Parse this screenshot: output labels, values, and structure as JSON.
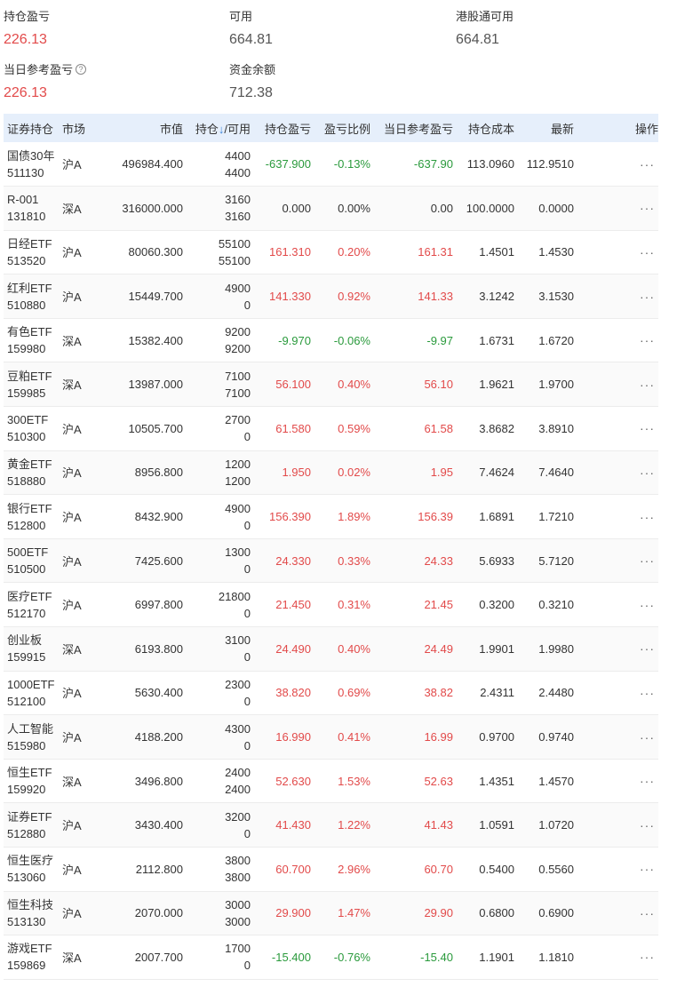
{
  "summary": {
    "position_pl": {
      "label": "持仓盈亏",
      "value": "226.13"
    },
    "available": {
      "label": "可用",
      "value": "664.81"
    },
    "hk_available": {
      "label": "港股通可用",
      "value": "664.81"
    },
    "daily_ref_pl": {
      "label": "当日参考盈亏",
      "value": "226.13"
    },
    "fund_balance": {
      "label": "资金余额",
      "value": "712.38"
    }
  },
  "colors": {
    "up": "#e24a4a",
    "down": "#2a9a3c",
    "header_bg": "#e6effb",
    "sort_arrow": "#3a84d8"
  },
  "table": {
    "headers": {
      "security": "证券持仓",
      "market": "市场",
      "value": "市值",
      "qty": "持仓",
      "sort_arrow": "↓",
      "avail": "/可用",
      "pl": "持仓盈亏",
      "ratio": "盈亏比例",
      "daily": "当日参考盈亏",
      "cost": "持仓成本",
      "latest": "最新",
      "action": "操作"
    },
    "more_label": "···",
    "rows": [
      {
        "name": "国债30年",
        "code": "511130",
        "market": "沪A",
        "value": "496984.400",
        "qty": "4400",
        "avail": "4400",
        "pl": "-637.900",
        "ratio": "-0.13%",
        "daily": "-637.90",
        "cost": "113.0960",
        "latest": "112.9510",
        "dir": "down"
      },
      {
        "name": "R-001",
        "code": "131810",
        "market": "深A",
        "value": "316000.000",
        "qty": "3160",
        "avail": "3160",
        "pl": "0.000",
        "ratio": "0.00%",
        "daily": "0.00",
        "cost": "100.0000",
        "latest": "0.0000",
        "dir": "flat"
      },
      {
        "name": "日经ETF",
        "code": "513520",
        "market": "沪A",
        "value": "80060.300",
        "qty": "55100",
        "avail": "55100",
        "pl": "161.310",
        "ratio": "0.20%",
        "daily": "161.31",
        "cost": "1.4501",
        "latest": "1.4530",
        "dir": "up"
      },
      {
        "name": "红利ETF",
        "code": "510880",
        "market": "沪A",
        "value": "15449.700",
        "qty": "4900",
        "avail": "0",
        "pl": "141.330",
        "ratio": "0.92%",
        "daily": "141.33",
        "cost": "3.1242",
        "latest": "3.1530",
        "dir": "up"
      },
      {
        "name": "有色ETF",
        "code": "159980",
        "market": "深A",
        "value": "15382.400",
        "qty": "9200",
        "avail": "9200",
        "pl": "-9.970",
        "ratio": "-0.06%",
        "daily": "-9.97",
        "cost": "1.6731",
        "latest": "1.6720",
        "dir": "down"
      },
      {
        "name": "豆粕ETF",
        "code": "159985",
        "market": "深A",
        "value": "13987.000",
        "qty": "7100",
        "avail": "7100",
        "pl": "56.100",
        "ratio": "0.40%",
        "daily": "56.10",
        "cost": "1.9621",
        "latest": "1.9700",
        "dir": "up"
      },
      {
        "name": "300ETF",
        "code": "510300",
        "market": "沪A",
        "value": "10505.700",
        "qty": "2700",
        "avail": "0",
        "pl": "61.580",
        "ratio": "0.59%",
        "daily": "61.58",
        "cost": "3.8682",
        "latest": "3.8910",
        "dir": "up"
      },
      {
        "name": "黄金ETF",
        "code": "518880",
        "market": "沪A",
        "value": "8956.800",
        "qty": "1200",
        "avail": "1200",
        "pl": "1.950",
        "ratio": "0.02%",
        "daily": "1.95",
        "cost": "7.4624",
        "latest": "7.4640",
        "dir": "up"
      },
      {
        "name": "银行ETF",
        "code": "512800",
        "market": "沪A",
        "value": "8432.900",
        "qty": "4900",
        "avail": "0",
        "pl": "156.390",
        "ratio": "1.89%",
        "daily": "156.39",
        "cost": "1.6891",
        "latest": "1.7210",
        "dir": "up"
      },
      {
        "name": "500ETF",
        "code": "510500",
        "market": "沪A",
        "value": "7425.600",
        "qty": "1300",
        "avail": "0",
        "pl": "24.330",
        "ratio": "0.33%",
        "daily": "24.33",
        "cost": "5.6933",
        "latest": "5.7120",
        "dir": "up"
      },
      {
        "name": "医疗ETF",
        "code": "512170",
        "market": "沪A",
        "value": "6997.800",
        "qty": "21800",
        "avail": "0",
        "pl": "21.450",
        "ratio": "0.31%",
        "daily": "21.45",
        "cost": "0.3200",
        "latest": "0.3210",
        "dir": "up"
      },
      {
        "name": "创业板",
        "code": "159915",
        "market": "深A",
        "value": "6193.800",
        "qty": "3100",
        "avail": "0",
        "pl": "24.490",
        "ratio": "0.40%",
        "daily": "24.49",
        "cost": "1.9901",
        "latest": "1.9980",
        "dir": "up"
      },
      {
        "name": "1000ETF",
        "code": "512100",
        "market": "沪A",
        "value": "5630.400",
        "qty": "2300",
        "avail": "0",
        "pl": "38.820",
        "ratio": "0.69%",
        "daily": "38.82",
        "cost": "2.4311",
        "latest": "2.4480",
        "dir": "up"
      },
      {
        "name": "人工智能",
        "code": "515980",
        "market": "沪A",
        "value": "4188.200",
        "qty": "4300",
        "avail": "0",
        "pl": "16.990",
        "ratio": "0.41%",
        "daily": "16.99",
        "cost": "0.9700",
        "latest": "0.9740",
        "dir": "up"
      },
      {
        "name": "恒生ETF",
        "code": "159920",
        "market": "深A",
        "value": "3496.800",
        "qty": "2400",
        "avail": "2400",
        "pl": "52.630",
        "ratio": "1.53%",
        "daily": "52.63",
        "cost": "1.4351",
        "latest": "1.4570",
        "dir": "up"
      },
      {
        "name": "证券ETF",
        "code": "512880",
        "market": "沪A",
        "value": "3430.400",
        "qty": "3200",
        "avail": "0",
        "pl": "41.430",
        "ratio": "1.22%",
        "daily": "41.43",
        "cost": "1.0591",
        "latest": "1.0720",
        "dir": "up"
      },
      {
        "name": "恒生医疗",
        "code": "513060",
        "market": "沪A",
        "value": "2112.800",
        "qty": "3800",
        "avail": "3800",
        "pl": "60.700",
        "ratio": "2.96%",
        "daily": "60.70",
        "cost": "0.5400",
        "latest": "0.5560",
        "dir": "up"
      },
      {
        "name": "恒生科技",
        "code": "513130",
        "market": "沪A",
        "value": "2070.000",
        "qty": "3000",
        "avail": "3000",
        "pl": "29.900",
        "ratio": "1.47%",
        "daily": "29.90",
        "cost": "0.6800",
        "latest": "0.6900",
        "dir": "up"
      },
      {
        "name": "游戏ETF",
        "code": "159869",
        "market": "深A",
        "value": "2007.700",
        "qty": "1700",
        "avail": "0",
        "pl": "-15.400",
        "ratio": "-0.76%",
        "daily": "-15.40",
        "cost": "1.1901",
        "latest": "1.1810",
        "dir": "down"
      }
    ]
  }
}
